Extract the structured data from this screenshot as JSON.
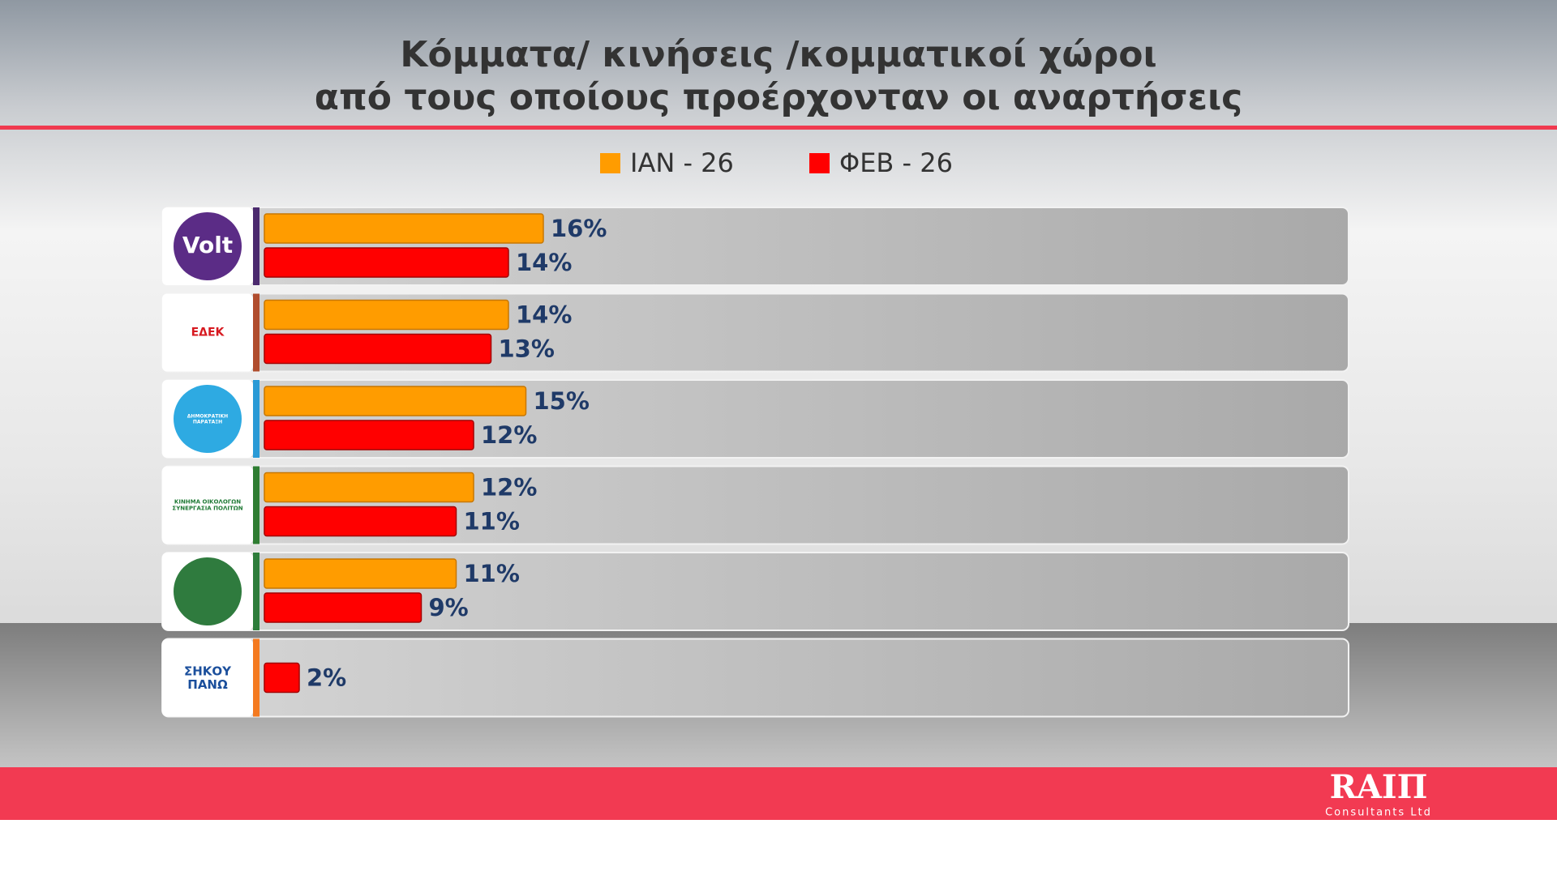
{
  "chart_data": {
    "type": "hbar",
    "title": [
      "Κόμματα/ κινήσεις /κομματικοί χώροι",
      "από τους οποίους προέρχονταν οι αναρτήσεις"
    ],
    "categories": [
      "Volt",
      "ΕΔΕΚ",
      "ΔΗΜΟΚΡΑΤΙΚΗ ΠΑΡΑΤΑΞΗ",
      "ΚΙΝΗΜΑ ΟΙΚΟΛΟΓΩΝ ΣΥΝΕΡΓΑΣΙΑ ΠΟΛΙΤΩΝ",
      null,
      "ΣΗΚΟΥ ΠΑΝΩ"
    ],
    "series": [
      {
        "name": "ΙΑΝ - 26",
        "color": "#ff9c00",
        "values": [
          16,
          14,
          15,
          12,
          11,
          null
        ],
        "value_labels": [
          "16%",
          "14%",
          "15%",
          "12%",
          "11%",
          null
        ]
      },
      {
        "name": "ΦΕΒ - 26",
        "color": "#ff0000",
        "values": [
          14,
          13,
          12,
          11,
          9,
          2
        ],
        "value_labels": [
          "14%",
          "13%",
          "12%",
          "11%",
          "9%",
          "2%"
        ]
      }
    ],
    "brand": {
      "name": "RAIΠ",
      "subtitle": "Consultants Ltd"
    }
  }
}
